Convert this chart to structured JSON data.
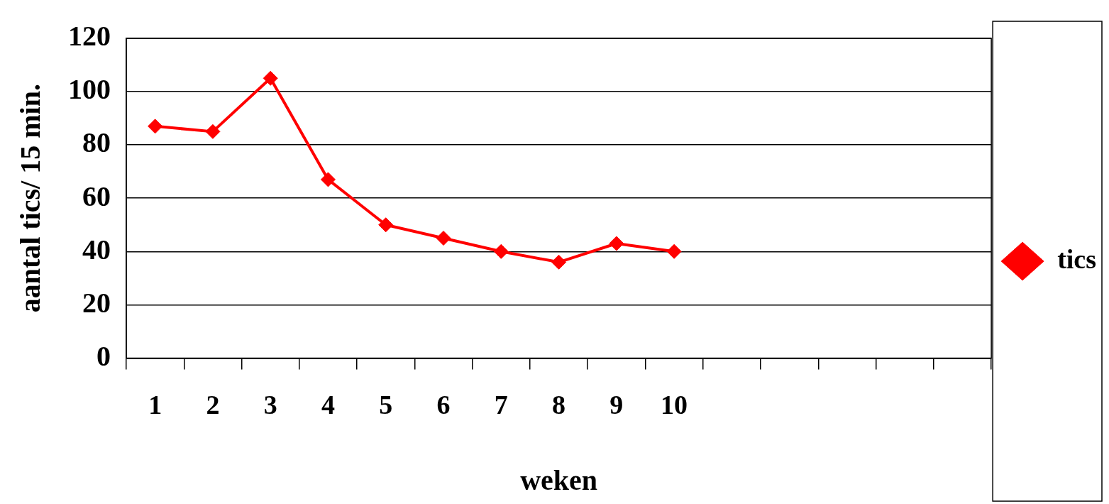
{
  "chart_data": {
    "type": "line",
    "xlabel": "weken",
    "ylabel": "aantal tics/ 15 min.",
    "categories": [
      "1",
      "2",
      "3",
      "4",
      "5",
      "6",
      "7",
      "8",
      "9",
      "10",
      null,
      null,
      null,
      null,
      null
    ],
    "series": [
      {
        "name": "tics",
        "color": "#ff0000",
        "values": [
          87,
          85,
          105,
          67,
          50,
          45,
          40,
          36,
          43,
          40,
          null,
          null,
          null,
          null,
          null
        ]
      }
    ],
    "ylim": [
      0,
      120
    ],
    "yticks": [
      0,
      20,
      40,
      60,
      80,
      100,
      120
    ],
    "grid": "y",
    "legend": "right",
    "marker": "diamond",
    "line_style": "solid"
  }
}
